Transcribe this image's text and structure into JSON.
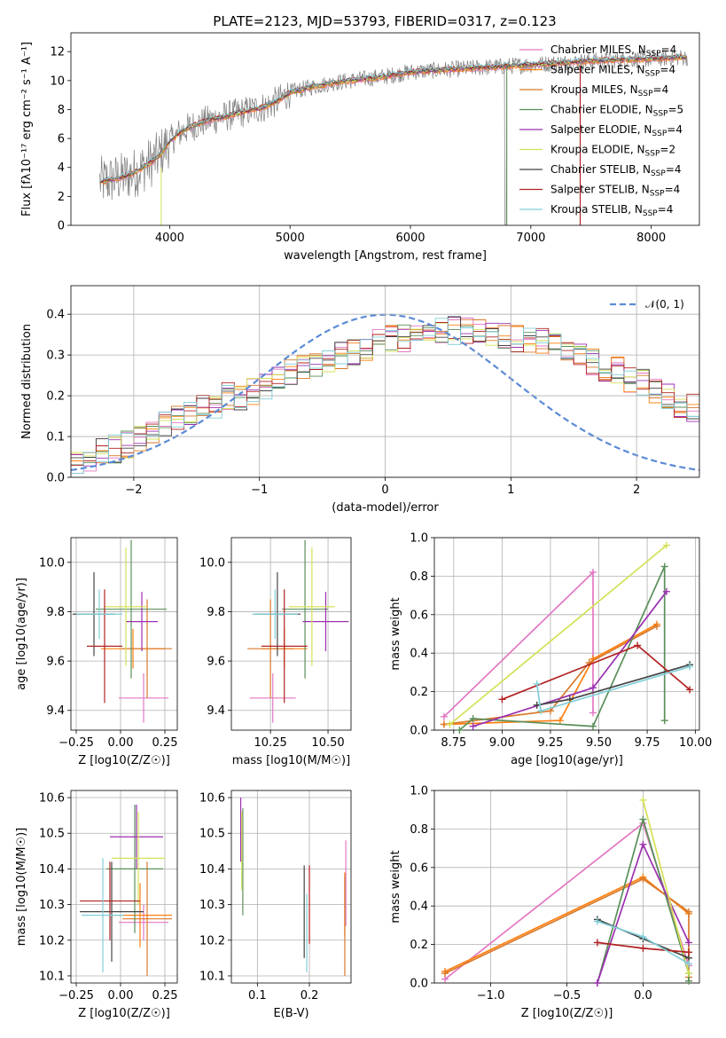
{
  "title": "PLATE=2123, MJD=53793, FIBERID=0317, z=0.123",
  "colors": {
    "Chabrier MILES": "#e377c2",
    "Salpeter MILES": "#ff7f0e",
    "Kroupa MILES": "#d97a2b",
    "Chabrier ELODIE": "#5a8f5a",
    "Salpeter ELODIE": "#9b30b0",
    "Kroupa ELODIE": "#d4e157",
    "Chabrier STELIB": "#444444",
    "Salpeter STELIB": "#b22222",
    "Kroupa STELIB": "#80cfd8",
    "data": "#808080",
    "normal": "#5b8bd6"
  },
  "chart_data": [
    {
      "id": "spectrum",
      "type": "line",
      "title": "PLATE=2123, MJD=53793, FIBERID=0317, z=0.123",
      "xlabel": "wavelength [Angstrom, rest frame]",
      "ylabel": "Flux [fλ10⁻¹⁷ erg cm⁻² s⁻¹ A⁻¹]",
      "xlim": [
        3180,
        8400
      ],
      "ylim": [
        0,
        13.3
      ],
      "xticks": [
        4000,
        5000,
        6000,
        7000,
        8000
      ],
      "yticks": [
        0,
        2,
        4,
        6,
        8,
        10,
        12
      ],
      "grid": false,
      "legend_position": "right",
      "legend": [
        "Chabrier MILES, N_SSP=4",
        "Salpeter MILES, N_SSP=4",
        "Kroupa MILES, N_SSP=4",
        "Chabrier ELODIE, N_SSP=5",
        "Salpeter ELODIE, N_SSP=4",
        "Kroupa ELODIE, N_SSP=2",
        "Chabrier STELIB, N_SSP=4",
        "Salpeter STELIB, N_SSP=4",
        "Kroupa STELIB, N_SSP=4"
      ],
      "continuum": {
        "x": [
          3400,
          3500,
          3600,
          3700,
          3800,
          3900,
          4000,
          4100,
          4200,
          4300,
          4400,
          4500,
          4600,
          4700,
          4800,
          4900,
          5000,
          5200,
          5400,
          5600,
          5800,
          6000,
          6200,
          6400,
          6600,
          6800,
          7000,
          7200,
          7400,
          7600,
          7800,
          8000,
          8200,
          8300
        ],
        "y": [
          3.0,
          3.1,
          3.3,
          3.6,
          4.1,
          4.7,
          5.8,
          6.5,
          6.9,
          7.2,
          7.4,
          7.6,
          7.8,
          8.0,
          8.2,
          8.6,
          9.2,
          9.6,
          9.9,
          10.1,
          10.3,
          10.6,
          10.7,
          10.8,
          10.9,
          11.0,
          11.1,
          11.2,
          11.3,
          11.4,
          11.45,
          11.5,
          11.6,
          11.6
        ]
      }
    },
    {
      "id": "residuals",
      "type": "bar",
      "xlabel": "(data-model)/error",
      "ylabel": "Normed distribution",
      "xlim": [
        -2.5,
        2.5
      ],
      "ylim": [
        0,
        0.47
      ],
      "xticks": [
        -2,
        -1,
        0,
        1,
        2
      ],
      "yticks": [
        0.0,
        0.1,
        0.2,
        0.3,
        0.4
      ],
      "grid": true,
      "legend": [
        "𝒩(0, 1)"
      ],
      "legend_position": "top-right",
      "bin_width": 0.1,
      "series_base": [
        0.03,
        0.05,
        0.07,
        0.07,
        0.08,
        0.09,
        0.11,
        0.13,
        0.15,
        0.16,
        0.17,
        0.18,
        0.2,
        0.2,
        0.21,
        0.22,
        0.24,
        0.26,
        0.27,
        0.28,
        0.29,
        0.3,
        0.31,
        0.32,
        0.33,
        0.34,
        0.34,
        0.35,
        0.35,
        0.36,
        0.36,
        0.36,
        0.36,
        0.35,
        0.35,
        0.34,
        0.34,
        0.33,
        0.32,
        0.31,
        0.3,
        0.28,
        0.27,
        0.26,
        0.24,
        0.23,
        0.21,
        0.2,
        0.18,
        0.17
      ]
    },
    {
      "id": "age-vs-Z",
      "type": "scatter",
      "xlabel": "Z [log10(Z/Z☉)]",
      "ylabel": "age  [log10(age/yr)]",
      "xlim": [
        -0.28,
        0.32
      ],
      "ylim": [
        9.32,
        10.1
      ],
      "xticks": [
        -0.25,
        0.0,
        0.25
      ],
      "yticks": [
        9.4,
        9.6,
        9.8,
        10.0
      ],
      "grid": true,
      "points": [
        {
          "model": "Chabrier MILES",
          "x": 0.13,
          "xerr": 0.14,
          "y": 9.45,
          "yerr": 0.1
        },
        {
          "model": "Salpeter MILES",
          "x": 0.07,
          "xerr": 0.18,
          "y": 9.65,
          "yerr": 0.08
        },
        {
          "model": "Kroupa MILES",
          "x": 0.15,
          "xerr": 0.14,
          "y": 9.65,
          "yerr": 0.2
        },
        {
          "model": "Chabrier ELODIE",
          "x": 0.06,
          "xerr": 0.2,
          "y": 9.81,
          "yerr": 0.28
        },
        {
          "model": "Salpeter ELODIE",
          "x": 0.12,
          "xerr": 0.09,
          "y": 9.76,
          "yerr": 0.12
        },
        {
          "model": "Kroupa ELODIE",
          "x": 0.03,
          "xerr": 0.12,
          "y": 9.82,
          "yerr": 0.24
        },
        {
          "model": "Chabrier STELIB",
          "x": -0.15,
          "xerr": 0.12,
          "y": 9.79,
          "yerr": 0.17
        },
        {
          "model": "Salpeter STELIB",
          "x": -0.09,
          "xerr": 0.1,
          "y": 9.66,
          "yerr": 0.23
        },
        {
          "model": "Kroupa STELIB",
          "x": -0.12,
          "xerr": 0.13,
          "y": 9.79,
          "yerr": 0.1
        }
      ]
    },
    {
      "id": "age-vs-mass",
      "type": "scatter",
      "xlabel": "mass [log10(M/M☉)]",
      "ylabel": "",
      "xlim": [
        10.08,
        10.6
      ],
      "ylim": [
        9.32,
        10.1
      ],
      "xticks": [
        10.25,
        10.5
      ],
      "yticks": [
        9.4,
        9.6,
        9.8,
        10.0
      ],
      "grid": true,
      "points": [
        {
          "model": "Chabrier MILES",
          "x": 10.26,
          "xerr": 0.1,
          "y": 9.45,
          "yerr": 0.1
        },
        {
          "model": "Salpeter MILES",
          "x": 10.31,
          "xerr": 0.1,
          "y": 9.65,
          "yerr": 0.08
        },
        {
          "model": "Kroupa MILES",
          "x": 10.25,
          "xerr": 0.1,
          "y": 9.65,
          "yerr": 0.2
        },
        {
          "model": "Chabrier ELODIE",
          "x": 10.4,
          "xerr": 0.1,
          "y": 9.81,
          "yerr": 0.28
        },
        {
          "model": "Salpeter ELODIE",
          "x": 10.49,
          "xerr": 0.1,
          "y": 9.76,
          "yerr": 0.12
        },
        {
          "model": "Kroupa ELODIE",
          "x": 10.43,
          "xerr": 0.1,
          "y": 9.82,
          "yerr": 0.24
        },
        {
          "model": "Chabrier STELIB",
          "x": 10.28,
          "xerr": 0.1,
          "y": 9.79,
          "yerr": 0.17
        },
        {
          "model": "Salpeter STELIB",
          "x": 10.31,
          "xerr": 0.1,
          "y": 9.66,
          "yerr": 0.23
        },
        {
          "model": "Kroupa STELIB",
          "x": 10.27,
          "xerr": 0.1,
          "y": 9.79,
          "yerr": 0.1
        }
      ]
    },
    {
      "id": "weight-vs-age",
      "type": "line",
      "xlabel": "age  [log10(age/yr)]",
      "ylabel": "mass weight",
      "xlim": [
        8.65,
        10.02
      ],
      "ylim": [
        0,
        1
      ],
      "xticks": [
        8.75,
        9.0,
        9.25,
        9.5,
        9.75,
        10.0
      ],
      "yticks": [
        0.0,
        0.2,
        0.4,
        0.6,
        0.8,
        1.0
      ],
      "grid": true,
      "series": [
        {
          "model": "Chabrier MILES",
          "x": [
            8.7,
            9.47,
            9.47
          ],
          "y": [
            0.07,
            0.82,
            0.09
          ]
        },
        {
          "model": "Salpeter MILES",
          "x": [
            8.7,
            9.3,
            9.47,
            9.8
          ],
          "y": [
            0.03,
            0.05,
            0.37,
            0.55
          ]
        },
        {
          "model": "Kroupa MILES",
          "x": [
            8.7,
            9.25,
            9.45,
            9.8
          ],
          "y": [
            0.03,
            0.1,
            0.35,
            0.54
          ]
        },
        {
          "model": "Chabrier ELODIE",
          "x": [
            8.78,
            8.85,
            9.47,
            9.84,
            9.84
          ],
          "y": [
            0.0,
            0.06,
            0.02,
            0.85,
            0.05
          ]
        },
        {
          "model": "Salpeter ELODIE",
          "x": [
            8.85,
            9.47,
            9.85
          ],
          "y": [
            0.02,
            0.22,
            0.72
          ]
        },
        {
          "model": "Kroupa ELODIE",
          "x": [
            8.73,
            9.85
          ],
          "y": [
            0.03,
            0.96
          ]
        },
        {
          "model": "Chabrier STELIB",
          "x": [
            9.18,
            9.35,
            9.97
          ],
          "y": [
            0.13,
            0.16,
            0.34
          ]
        },
        {
          "model": "Salpeter STELIB",
          "x": [
            9.0,
            9.7,
            9.97
          ],
          "y": [
            0.16,
            0.44,
            0.21
          ]
        },
        {
          "model": "Kroupa STELIB",
          "x": [
            9.18,
            9.2,
            9.97
          ],
          "y": [
            0.24,
            0.1,
            0.33
          ]
        }
      ]
    },
    {
      "id": "mass-vs-Z",
      "type": "scatter",
      "xlabel": "Z [log10(Z/Z☉)]",
      "ylabel": "mass [log10(M/M☉)]",
      "xlim": [
        -0.28,
        0.32
      ],
      "ylim": [
        10.08,
        10.62
      ],
      "xticks": [
        -0.25,
        0.0,
        0.25
      ],
      "yticks": [
        10.1,
        10.2,
        10.3,
        10.4,
        10.5,
        10.6
      ],
      "grid": true,
      "points": [
        {
          "model": "Chabrier MILES",
          "x": 0.13,
          "xerr": 0.14,
          "y": 10.25,
          "yerr": 0.05
        },
        {
          "model": "Salpeter MILES",
          "x": 0.11,
          "xerr": 0.18,
          "y": 10.27,
          "yerr": 0.09
        },
        {
          "model": "Kroupa MILES",
          "x": 0.15,
          "xerr": 0.14,
          "y": 10.26,
          "yerr": 0.16
        },
        {
          "model": "Chabrier ELODIE",
          "x": 0.08,
          "xerr": 0.16,
          "y": 10.4,
          "yerr": 0.18
        },
        {
          "model": "Salpeter ELODIE",
          "x": 0.09,
          "xerr": 0.15,
          "y": 10.49,
          "yerr": 0.09
        },
        {
          "model": "Kroupa ELODIE",
          "x": 0.1,
          "xerr": 0.15,
          "y": 10.43,
          "yerr": 0.13
        },
        {
          "model": "Chabrier STELIB",
          "x": -0.05,
          "xerr": 0.18,
          "y": 10.28,
          "yerr": 0.14
        },
        {
          "model": "Salpeter STELIB",
          "x": -0.06,
          "xerr": 0.17,
          "y": 10.31,
          "yerr": 0.11
        },
        {
          "model": "Kroupa STELIB",
          "x": -0.1,
          "xerr": 0.12,
          "y": 10.27,
          "yerr": 0.16
        }
      ]
    },
    {
      "id": "mass-vs-EBV",
      "type": "scatter",
      "xlabel": "E(B-V)",
      "ylabel": "",
      "xlim": [
        0.05,
        0.28
      ],
      "ylim": [
        10.08,
        10.62
      ],
      "xticks": [
        0.1,
        0.2
      ],
      "yticks": [
        10.1,
        10.2,
        10.3,
        10.4,
        10.5,
        10.6
      ],
      "grid": true,
      "points": [
        {
          "model": "Chabrier MILES",
          "x": 0.27,
          "xerr": 0,
          "y": 10.36,
          "yerr": 0.12
        },
        {
          "model": "Salpeter MILES",
          "x": 0.268,
          "xerr": 0,
          "y": 10.3,
          "yerr": 0.09
        },
        {
          "model": "Kroupa MILES",
          "x": 0.268,
          "xerr": 0,
          "y": 10.24,
          "yerr": 0.14
        },
        {
          "model": "Chabrier ELODIE",
          "x": 0.072,
          "xerr": 0,
          "y": 10.42,
          "yerr": 0.15
        },
        {
          "model": "Salpeter ELODIE",
          "x": 0.068,
          "xerr": 0,
          "y": 10.51,
          "yerr": 0.09
        },
        {
          "model": "Kroupa ELODIE",
          "x": 0.07,
          "xerr": 0,
          "y": 10.45,
          "yerr": 0.11
        },
        {
          "model": "Chabrier STELIB",
          "x": 0.19,
          "xerr": 0,
          "y": 10.28,
          "yerr": 0.13
        },
        {
          "model": "Salpeter STELIB",
          "x": 0.2,
          "xerr": 0,
          "y": 10.3,
          "yerr": 0.11
        },
        {
          "model": "Kroupa STELIB",
          "x": 0.195,
          "xerr": 0,
          "y": 10.22,
          "yerr": 0.11
        }
      ]
    },
    {
      "id": "weight-vs-Z",
      "type": "line",
      "xlabel": "Z [log10(Z/Z☉)]",
      "ylabel": "mass weight",
      "xlim": [
        -1.37,
        0.37
      ],
      "ylim": [
        0,
        1
      ],
      "xticks": [
        -1.0,
        -0.5,
        0.0
      ],
      "yticks": [
        0.0,
        0.2,
        0.4,
        0.6,
        0.8,
        1.0
      ],
      "grid": true,
      "series": [
        {
          "model": "Chabrier MILES",
          "x": [
            -1.3,
            0.0,
            0.3
          ],
          "y": [
            0.02,
            0.83,
            0.09
          ]
        },
        {
          "model": "Salpeter MILES",
          "x": [
            -1.3,
            0.0,
            0.3
          ],
          "y": [
            0.06,
            0.55,
            0.36
          ]
        },
        {
          "model": "Kroupa MILES",
          "x": [
            -1.3,
            0.0,
            0.3,
            0.3
          ],
          "y": [
            0.05,
            0.54,
            0.37,
            0.03
          ]
        },
        {
          "model": "Chabrier ELODIE",
          "x": [
            -0.3,
            0.0,
            0.3,
            0.3
          ],
          "y": [
            0.0,
            0.85,
            0.05,
            0.01
          ]
        },
        {
          "model": "Salpeter ELODIE",
          "x": [
            -0.3,
            0.0,
            0.3
          ],
          "y": [
            0.0,
            0.72,
            0.21
          ]
        },
        {
          "model": "Kroupa ELODIE",
          "x": [
            0.0,
            0.3
          ],
          "y": [
            0.95,
            0.05
          ]
        },
        {
          "model": "Chabrier STELIB",
          "x": [
            -0.3,
            0.0,
            0.3
          ],
          "y": [
            0.33,
            0.23,
            0.13
          ]
        },
        {
          "model": "Salpeter STELIB",
          "x": [
            -0.3,
            0.0,
            0.3
          ],
          "y": [
            0.21,
            0.18,
            0.16
          ]
        },
        {
          "model": "Kroupa STELIB",
          "x": [
            -0.3,
            0.0,
            0.3
          ],
          "y": [
            0.32,
            0.24,
            0.1
          ]
        }
      ]
    }
  ]
}
